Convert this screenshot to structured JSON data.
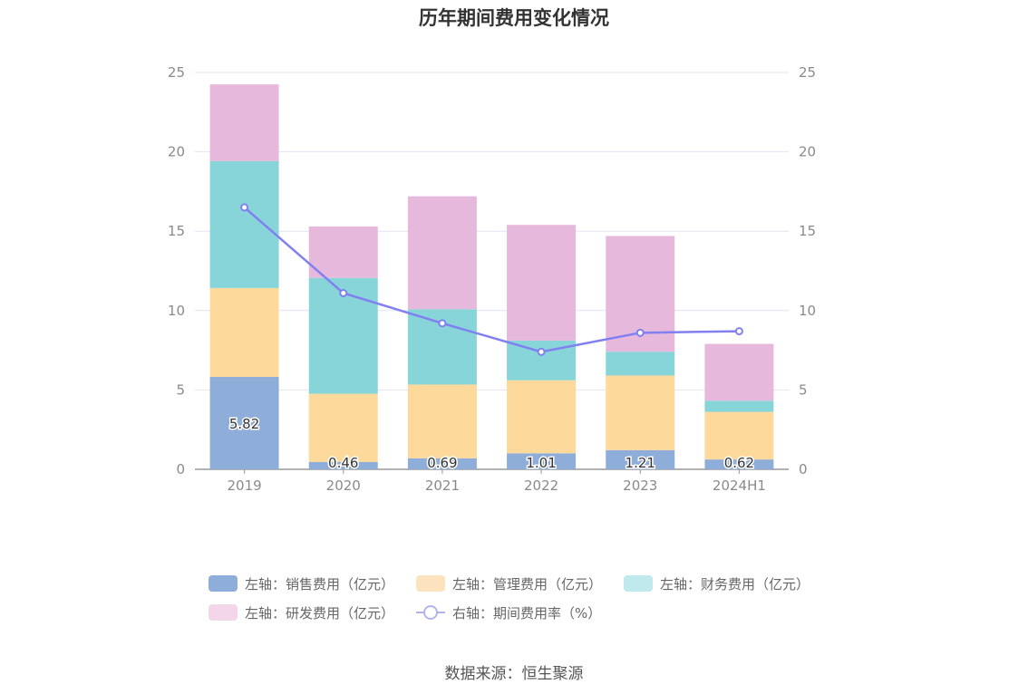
{
  "chart_data": {
    "type": "bar",
    "title": "历年期间费用变化情况",
    "categories": [
      "2019",
      "2020",
      "2021",
      "2022",
      "2023",
      "2024H1"
    ],
    "left_axis": {
      "ticks": [
        "0",
        "5",
        "10",
        "15",
        "20",
        "25"
      ],
      "ylim": [
        0,
        25
      ]
    },
    "right_axis": {
      "ticks": [
        "0",
        "5",
        "10",
        "15",
        "20",
        "25"
      ],
      "ylim": [
        0,
        25
      ]
    },
    "stacked": true,
    "grid": true,
    "legend_position": "bottom",
    "series": [
      {
        "name": "左轴：销售费用（亿元）",
        "type": "bar",
        "color": "#8eadd9",
        "values": [
          5.82,
          0.46,
          0.69,
          1.01,
          1.21,
          0.62
        ],
        "labels": [
          "5.82",
          "0.46",
          "0.69",
          "1.01",
          "1.21",
          "0.62"
        ]
      },
      {
        "name": "左轴：管理费用（亿元）",
        "type": "bar",
        "color": "#fdd99c",
        "values": [
          5.6,
          4.3,
          4.65,
          4.6,
          4.7,
          3.0
        ]
      },
      {
        "name": "左轴：财务费用（亿元）",
        "type": "bar",
        "color": "#87d5d9",
        "values": [
          8.0,
          7.3,
          4.75,
          2.5,
          1.5,
          0.7
        ]
      },
      {
        "name": "左轴：研发费用（亿元）",
        "type": "bar",
        "color": "#e6b9dc",
        "values": [
          4.83,
          3.24,
          7.11,
          7.29,
          7.29,
          3.58
        ]
      },
      {
        "name": "右轴：期间费用率（%）",
        "type": "line",
        "color": "#8080f0",
        "values": [
          16.5,
          11.1,
          9.2,
          7.4,
          8.6,
          8.7
        ]
      }
    ],
    "legend_colors": [
      "#8eadd9",
      "#fde3bd",
      "#bfe9ec",
      "#f3d6ea",
      "#b3b3f0"
    ]
  },
  "source_text": "数据来源：恒生聚源"
}
